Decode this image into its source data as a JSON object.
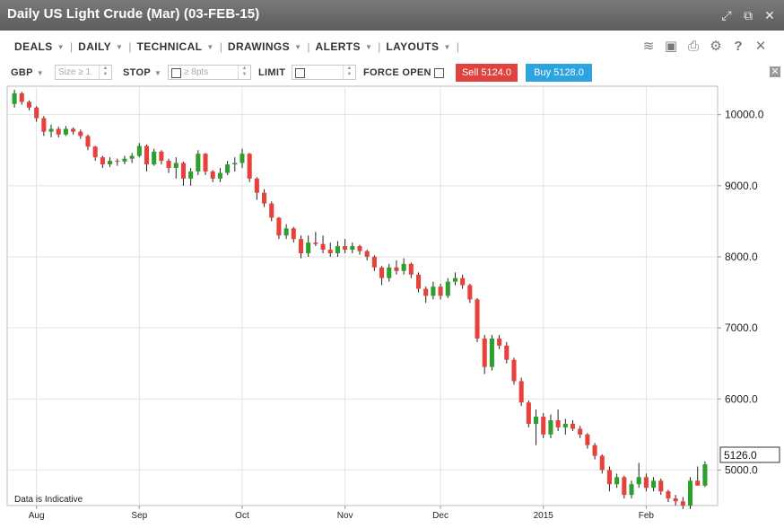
{
  "window": {
    "title": "Daily US Light Crude (Mar) (03-FEB-15)",
    "icons": [
      "expand-icon",
      "popout-icon",
      "close-icon"
    ]
  },
  "menu": {
    "items": [
      {
        "label": "DEALS"
      },
      {
        "label": "DAILY"
      },
      {
        "label": "TECHNICAL"
      },
      {
        "label": "DRAWINGS"
      },
      {
        "label": "ALERTS"
      },
      {
        "label": "LAYOUTS"
      }
    ],
    "tools": [
      "layers-icon",
      "image-icon",
      "print-icon",
      "gear-icon",
      "help-icon",
      "close-icon"
    ]
  },
  "trade": {
    "currency": "GBP",
    "size_placeholder": "Size ≥ 1",
    "stop_label": "STOP",
    "stop_placeholder": "≥ 8pts",
    "limit_label": "LIMIT",
    "force_open_label": "FORCE OPEN",
    "sell_label": "Sell 5124.0",
    "buy_label": "Buy 5128.0"
  },
  "chart_data": {
    "type": "candlestick",
    "title": "Daily US Light Crude (Mar) (03-FEB-15)",
    "annotation": "Data is Indicative",
    "current_price_label": "5126.0",
    "ylim": [
      4500,
      10400
    ],
    "y_ticks": [
      {
        "value": 10000,
        "label": "10000.0"
      },
      {
        "value": 9000,
        "label": "9000.0"
      },
      {
        "value": 8000,
        "label": "8000.0"
      },
      {
        "value": 7000,
        "label": "7000.0"
      },
      {
        "value": 6000,
        "label": "6000.0"
      },
      {
        "value": 5000,
        "label": "5000.0"
      }
    ],
    "x_ticks": [
      {
        "index": 3,
        "label": "Aug"
      },
      {
        "index": 17,
        "label": "Sep"
      },
      {
        "index": 31,
        "label": "Oct"
      },
      {
        "index": 45,
        "label": "Nov"
      },
      {
        "index": 58,
        "label": "Dec"
      },
      {
        "index": 72,
        "label": "2015"
      },
      {
        "index": 86,
        "label": "Feb"
      }
    ],
    "grid": true,
    "up_color": "#2ca02c",
    "down_color": "#e8413c",
    "candles": [
      {
        "o": 10150,
        "h": 10350,
        "l": 10100,
        "c": 10300
      },
      {
        "o": 10300,
        "h": 10320,
        "l": 10140,
        "c": 10180
      },
      {
        "o": 10180,
        "h": 10200,
        "l": 10060,
        "c": 10100
      },
      {
        "o": 10100,
        "h": 10120,
        "l": 9900,
        "c": 9950
      },
      {
        "o": 9950,
        "h": 9980,
        "l": 9700,
        "c": 9760
      },
      {
        "o": 9760,
        "h": 9860,
        "l": 9680,
        "c": 9800
      },
      {
        "o": 9800,
        "h": 9830,
        "l": 9680,
        "c": 9720
      },
      {
        "o": 9720,
        "h": 9840,
        "l": 9700,
        "c": 9800
      },
      {
        "o": 9800,
        "h": 9820,
        "l": 9720,
        "c": 9760
      },
      {
        "o": 9760,
        "h": 9790,
        "l": 9660,
        "c": 9700
      },
      {
        "o": 9700,
        "h": 9720,
        "l": 9500,
        "c": 9550
      },
      {
        "o": 9550,
        "h": 9560,
        "l": 9350,
        "c": 9400
      },
      {
        "o": 9400,
        "h": 9420,
        "l": 9250,
        "c": 9300
      },
      {
        "o": 9300,
        "h": 9400,
        "l": 9260,
        "c": 9350
      },
      {
        "o": 9350,
        "h": 9380,
        "l": 9280,
        "c": 9340
      },
      {
        "o": 9340,
        "h": 9420,
        "l": 9300,
        "c": 9380
      },
      {
        "o": 9380,
        "h": 9460,
        "l": 9320,
        "c": 9420
      },
      {
        "o": 9420,
        "h": 9600,
        "l": 9400,
        "c": 9560
      },
      {
        "o": 9560,
        "h": 9580,
        "l": 9200,
        "c": 9300
      },
      {
        "o": 9300,
        "h": 9520,
        "l": 9280,
        "c": 9480
      },
      {
        "o": 9480,
        "h": 9500,
        "l": 9300,
        "c": 9350
      },
      {
        "o": 9350,
        "h": 9380,
        "l": 9180,
        "c": 9250
      },
      {
        "o": 9250,
        "h": 9400,
        "l": 9100,
        "c": 9320
      },
      {
        "o": 9320,
        "h": 9340,
        "l": 9000,
        "c": 9100
      },
      {
        "o": 9100,
        "h": 9250,
        "l": 9000,
        "c": 9200
      },
      {
        "o": 9200,
        "h": 9500,
        "l": 9150,
        "c": 9450
      },
      {
        "o": 9450,
        "h": 9460,
        "l": 9150,
        "c": 9200
      },
      {
        "o": 9200,
        "h": 9220,
        "l": 9050,
        "c": 9100
      },
      {
        "o": 9100,
        "h": 9250,
        "l": 9050,
        "c": 9180
      },
      {
        "o": 9180,
        "h": 9350,
        "l": 9150,
        "c": 9300
      },
      {
        "o": 9300,
        "h": 9400,
        "l": 9200,
        "c": 9320
      },
      {
        "o": 9320,
        "h": 9520,
        "l": 9250,
        "c": 9450
      },
      {
        "o": 9450,
        "h": 9460,
        "l": 9050,
        "c": 9100
      },
      {
        "o": 9100,
        "h": 9120,
        "l": 8800,
        "c": 8900
      },
      {
        "o": 8900,
        "h": 8950,
        "l": 8700,
        "c": 8750
      },
      {
        "o": 8750,
        "h": 8780,
        "l": 8500,
        "c": 8550
      },
      {
        "o": 8550,
        "h": 8560,
        "l": 8250,
        "c": 8300
      },
      {
        "o": 8300,
        "h": 8460,
        "l": 8250,
        "c": 8400
      },
      {
        "o": 8400,
        "h": 8420,
        "l": 8200,
        "c": 8250
      },
      {
        "o": 8250,
        "h": 8300,
        "l": 7980,
        "c": 8050
      },
      {
        "o": 8050,
        "h": 8300,
        "l": 8000,
        "c": 8200
      },
      {
        "o": 8200,
        "h": 8350,
        "l": 8150,
        "c": 8180
      },
      {
        "o": 8180,
        "h": 8300,
        "l": 8050,
        "c": 8100
      },
      {
        "o": 8100,
        "h": 8200,
        "l": 8000,
        "c": 8050
      },
      {
        "o": 8050,
        "h": 8220,
        "l": 8000,
        "c": 8150
      },
      {
        "o": 8150,
        "h": 8250,
        "l": 8050,
        "c": 8100
      },
      {
        "o": 8100,
        "h": 8200,
        "l": 8050,
        "c": 8150
      },
      {
        "o": 8150,
        "h": 8170,
        "l": 8030,
        "c": 8080
      },
      {
        "o": 8080,
        "h": 8100,
        "l": 7950,
        "c": 8000
      },
      {
        "o": 8000,
        "h": 8020,
        "l": 7800,
        "c": 7850
      },
      {
        "o": 7850,
        "h": 7870,
        "l": 7600,
        "c": 7700
      },
      {
        "o": 7700,
        "h": 7900,
        "l": 7650,
        "c": 7850
      },
      {
        "o": 7850,
        "h": 7950,
        "l": 7750,
        "c": 7800
      },
      {
        "o": 7800,
        "h": 7980,
        "l": 7750,
        "c": 7900
      },
      {
        "o": 7900,
        "h": 7920,
        "l": 7700,
        "c": 7750
      },
      {
        "o": 7750,
        "h": 7780,
        "l": 7500,
        "c": 7550
      },
      {
        "o": 7550,
        "h": 7580,
        "l": 7350,
        "c": 7450
      },
      {
        "o": 7450,
        "h": 7650,
        "l": 7400,
        "c": 7580
      },
      {
        "o": 7580,
        "h": 7620,
        "l": 7400,
        "c": 7450
      },
      {
        "o": 7450,
        "h": 7700,
        "l": 7420,
        "c": 7650
      },
      {
        "o": 7650,
        "h": 7780,
        "l": 7600,
        "c": 7700
      },
      {
        "o": 7700,
        "h": 7750,
        "l": 7550,
        "c": 7600
      },
      {
        "o": 7600,
        "h": 7620,
        "l": 7350,
        "c": 7400
      },
      {
        "o": 7400,
        "h": 7420,
        "l": 6800,
        "c": 6850
      },
      {
        "o": 6850,
        "h": 6900,
        "l": 6350,
        "c": 6450
      },
      {
        "o": 6450,
        "h": 6900,
        "l": 6400,
        "c": 6850
      },
      {
        "o": 6850,
        "h": 6900,
        "l": 6700,
        "c": 6750
      },
      {
        "o": 6750,
        "h": 6800,
        "l": 6500,
        "c": 6550
      },
      {
        "o": 6550,
        "h": 6580,
        "l": 6200,
        "c": 6250
      },
      {
        "o": 6250,
        "h": 6300,
        "l": 5900,
        "c": 5950
      },
      {
        "o": 5950,
        "h": 5980,
        "l": 5600,
        "c": 5650
      },
      {
        "o": 5650,
        "h": 5850,
        "l": 5350,
        "c": 5750
      },
      {
        "o": 5750,
        "h": 5800,
        "l": 5450,
        "c": 5500
      },
      {
        "o": 5500,
        "h": 5780,
        "l": 5450,
        "c": 5700
      },
      {
        "o": 5700,
        "h": 5850,
        "l": 5550,
        "c": 5600
      },
      {
        "o": 5600,
        "h": 5720,
        "l": 5500,
        "c": 5650
      },
      {
        "o": 5650,
        "h": 5700,
        "l": 5550,
        "c": 5580
      },
      {
        "o": 5580,
        "h": 5620,
        "l": 5450,
        "c": 5500
      },
      {
        "o": 5500,
        "h": 5520,
        "l": 5300,
        "c": 5350
      },
      {
        "o": 5350,
        "h": 5380,
        "l": 5150,
        "c": 5200
      },
      {
        "o": 5200,
        "h": 5220,
        "l": 4950,
        "c": 5000
      },
      {
        "o": 5000,
        "h": 5050,
        "l": 4700,
        "c": 4800
      },
      {
        "o": 4800,
        "h": 4950,
        "l": 4750,
        "c": 4900
      },
      {
        "o": 4900,
        "h": 4920,
        "l": 4600,
        "c": 4650
      },
      {
        "o": 4650,
        "h": 4850,
        "l": 4600,
        "c": 4800
      },
      {
        "o": 4800,
        "h": 5100,
        "l": 4750,
        "c": 4900
      },
      {
        "o": 4900,
        "h": 4950,
        "l": 4700,
        "c": 4750
      },
      {
        "o": 4750,
        "h": 4900,
        "l": 4700,
        "c": 4850
      },
      {
        "o": 4850,
        "h": 4880,
        "l": 4650,
        "c": 4700
      },
      {
        "o": 4700,
        "h": 4720,
        "l": 4550,
        "c": 4600
      },
      {
        "o": 4600,
        "h": 4650,
        "l": 4500,
        "c": 4560
      },
      {
        "o": 4560,
        "h": 4620,
        "l": 4450,
        "c": 4500
      },
      {
        "o": 4500,
        "h": 4900,
        "l": 4450,
        "c": 4850
      },
      {
        "o": 4850,
        "h": 5050,
        "l": 4800,
        "c": 4780
      },
      {
        "o": 4780,
        "h": 5120,
        "l": 4760,
        "c": 5080
      }
    ]
  }
}
